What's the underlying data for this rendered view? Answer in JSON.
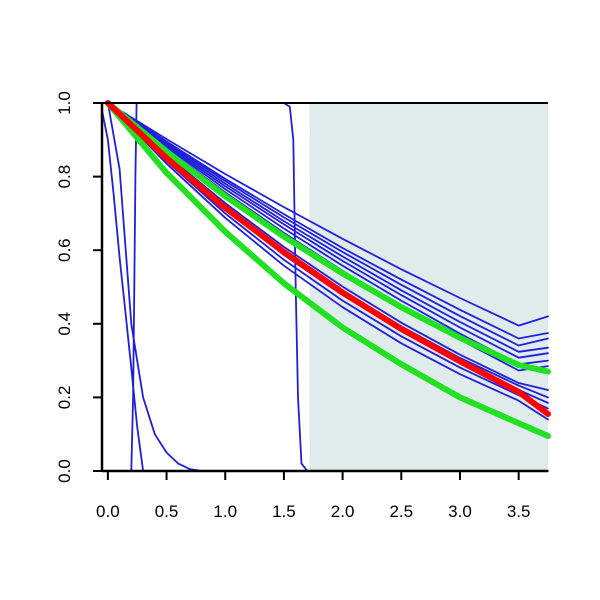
{
  "chart_data": {
    "type": "line",
    "title": "",
    "xlabel": "",
    "ylabel": "",
    "xlim": [
      -0.05,
      3.75
    ],
    "ylim": [
      0.0,
      1.0
    ],
    "grid": false,
    "x_ticks": [
      0.0,
      0.5,
      1.0,
      1.5,
      2.0,
      2.5,
      3.0,
      3.5
    ],
    "x_tick_labels": [
      "0.0",
      "0.5",
      "1.0",
      "1.5",
      "2.0",
      "2.5",
      "3.0",
      "3.5"
    ],
    "y_ticks": [
      0.0,
      0.2,
      0.4,
      0.6,
      0.8,
      1.0
    ],
    "y_tick_labels": [
      "0.0",
      "0.2",
      "0.4",
      "0.6",
      "0.8",
      "1.0"
    ],
    "shaded_region": {
      "x_from": 1.72,
      "x_to": 3.75,
      "color": "#e0ecec"
    },
    "colors": {
      "blue": "#1f1fdc",
      "green": "#22e022",
      "red": "#ff0000"
    },
    "series": [
      {
        "color": "blue",
        "width": "thin",
        "points": [
          [
            0.0,
            1.0
          ],
          [
            0.1,
            0.82
          ],
          [
            0.2,
            0.4
          ],
          [
            0.3,
            0.2
          ],
          [
            0.4,
            0.1
          ],
          [
            0.5,
            0.05
          ],
          [
            0.6,
            0.02
          ],
          [
            0.7,
            0.005
          ],
          [
            0.8,
            0.0
          ],
          [
            3.75,
            0.0
          ]
        ]
      },
      {
        "color": "blue",
        "width": "thin",
        "points": [
          [
            -0.05,
            0.98
          ],
          [
            0.0,
            0.9
          ],
          [
            0.05,
            0.75
          ],
          [
            0.1,
            0.58
          ],
          [
            0.15,
            0.43
          ],
          [
            0.2,
            0.28
          ],
          [
            0.25,
            0.12
          ],
          [
            0.3,
            0.0
          ]
        ]
      },
      {
        "color": "blue",
        "width": "thin",
        "points": [
          [
            0.2,
            0.0
          ],
          [
            0.215,
            0.2
          ],
          [
            0.225,
            0.5
          ],
          [
            0.235,
            0.8
          ],
          [
            0.245,
            1.0
          ],
          [
            1.5,
            1.0
          ],
          [
            1.55,
            0.99
          ],
          [
            1.58,
            0.9
          ],
          [
            1.6,
            0.5
          ],
          [
            1.62,
            0.2
          ],
          [
            1.65,
            0.02
          ],
          [
            1.7,
            0.0
          ]
        ]
      },
      {
        "color": "blue",
        "width": "thin",
        "points": [
          [
            0.0,
            1.0
          ],
          [
            0.5,
            0.902
          ],
          [
            1.0,
            0.807
          ],
          [
            1.5,
            0.717
          ],
          [
            2.0,
            0.631
          ],
          [
            2.5,
            0.548
          ],
          [
            3.0,
            0.47
          ],
          [
            3.5,
            0.395
          ],
          [
            3.75,
            0.42
          ]
        ]
      },
      {
        "color": "blue",
        "width": "thin",
        "points": [
          [
            0.0,
            1.0
          ],
          [
            0.5,
            0.895
          ],
          [
            1.0,
            0.794
          ],
          [
            1.5,
            0.698
          ],
          [
            2.0,
            0.606
          ],
          [
            2.5,
            0.52
          ],
          [
            3.0,
            0.438
          ],
          [
            3.5,
            0.36
          ],
          [
            3.75,
            0.375
          ]
        ]
      },
      {
        "color": "blue",
        "width": "thin",
        "points": [
          [
            0.0,
            1.0
          ],
          [
            0.5,
            0.892
          ],
          [
            1.0,
            0.788
          ],
          [
            1.5,
            0.689
          ],
          [
            2.0,
            0.595
          ],
          [
            2.5,
            0.506
          ],
          [
            3.0,
            0.421
          ],
          [
            3.5,
            0.341
          ],
          [
            3.75,
            0.36
          ]
        ]
      },
      {
        "color": "blue",
        "width": "thin",
        "points": [
          [
            0.0,
            1.0
          ],
          [
            0.5,
            0.888
          ],
          [
            1.0,
            0.781
          ],
          [
            1.5,
            0.679
          ],
          [
            2.0,
            0.583
          ],
          [
            2.5,
            0.491
          ],
          [
            3.0,
            0.405
          ],
          [
            3.5,
            0.324
          ],
          [
            3.75,
            0.335
          ]
        ]
      },
      {
        "color": "blue",
        "width": "thin",
        "points": [
          [
            0.0,
            1.0
          ],
          [
            0.5,
            0.884
          ],
          [
            1.0,
            0.774
          ],
          [
            1.5,
            0.67
          ],
          [
            2.0,
            0.571
          ],
          [
            2.5,
            0.478
          ],
          [
            3.0,
            0.39
          ],
          [
            3.5,
            0.308
          ],
          [
            3.75,
            0.32
          ]
        ]
      },
      {
        "color": "blue",
        "width": "thin",
        "points": [
          [
            0.0,
            1.0
          ],
          [
            0.5,
            0.88
          ],
          [
            1.0,
            0.766
          ],
          [
            1.5,
            0.659
          ],
          [
            2.0,
            0.558
          ],
          [
            2.5,
            0.463
          ],
          [
            3.0,
            0.373
          ],
          [
            3.5,
            0.29
          ],
          [
            3.75,
            0.3
          ]
        ]
      },
      {
        "color": "blue",
        "width": "thin",
        "points": [
          [
            0.0,
            1.0
          ],
          [
            0.5,
            0.875
          ],
          [
            1.0,
            0.757
          ],
          [
            1.5,
            0.647
          ],
          [
            2.0,
            0.544
          ],
          [
            2.5,
            0.447
          ],
          [
            3.0,
            0.357
          ],
          [
            3.5,
            0.273
          ],
          [
            3.75,
            0.285
          ]
        ]
      },
      {
        "color": "blue",
        "width": "thin",
        "points": [
          [
            0.0,
            1.0
          ],
          [
            0.5,
            0.858
          ],
          [
            1.0,
            0.728
          ],
          [
            1.5,
            0.609
          ],
          [
            2.0,
            0.501
          ],
          [
            2.5,
            0.403
          ],
          [
            3.0,
            0.316
          ],
          [
            3.5,
            0.239
          ],
          [
            3.75,
            0.22
          ]
        ]
      },
      {
        "color": "blue",
        "width": "thin",
        "points": [
          [
            0.0,
            1.0
          ],
          [
            0.5,
            0.853
          ],
          [
            1.0,
            0.72
          ],
          [
            1.5,
            0.599
          ],
          [
            2.0,
            0.49
          ],
          [
            2.5,
            0.393
          ],
          [
            3.0,
            0.307
          ],
          [
            3.5,
            0.232
          ],
          [
            3.75,
            0.2
          ]
        ]
      },
      {
        "color": "blue",
        "width": "thin",
        "points": [
          [
            0.0,
            1.0
          ],
          [
            0.5,
            0.848
          ],
          [
            1.0,
            0.71
          ],
          [
            1.5,
            0.587
          ],
          [
            2.0,
            0.478
          ],
          [
            2.5,
            0.381
          ],
          [
            3.0,
            0.295
          ],
          [
            3.5,
            0.22
          ],
          [
            3.75,
            0.185
          ]
        ]
      },
      {
        "color": "blue",
        "width": "thin",
        "points": [
          [
            0.0,
            1.0
          ],
          [
            0.5,
            0.842
          ],
          [
            1.0,
            0.7
          ],
          [
            1.5,
            0.574
          ],
          [
            2.0,
            0.463
          ],
          [
            2.5,
            0.366
          ],
          [
            3.0,
            0.281
          ],
          [
            3.5,
            0.206
          ],
          [
            3.75,
            0.17
          ]
        ]
      },
      {
        "color": "blue",
        "width": "thin",
        "points": [
          [
            0.0,
            1.0
          ],
          [
            0.5,
            0.835
          ],
          [
            1.0,
            0.688
          ],
          [
            1.5,
            0.558
          ],
          [
            2.0,
            0.445
          ],
          [
            2.5,
            0.347
          ],
          [
            3.0,
            0.263
          ],
          [
            3.5,
            0.191
          ],
          [
            3.75,
            0.14
          ]
        ]
      },
      {
        "color": "green",
        "width": "thick",
        "points": [
          [
            0.0,
            1.0
          ],
          [
            0.5,
            0.868
          ],
          [
            1.0,
            0.747
          ],
          [
            1.5,
            0.637
          ],
          [
            2.0,
            0.537
          ],
          [
            2.5,
            0.445
          ],
          [
            3.0,
            0.362
          ],
          [
            3.5,
            0.288
          ],
          [
            3.75,
            0.27
          ]
        ]
      },
      {
        "color": "green",
        "width": "thick",
        "points": [
          [
            0.0,
            1.0
          ],
          [
            0.5,
            0.81
          ],
          [
            1.0,
            0.65
          ],
          [
            1.5,
            0.51
          ],
          [
            2.0,
            0.39
          ],
          [
            2.5,
            0.29
          ],
          [
            3.0,
            0.2
          ],
          [
            3.5,
            0.13
          ],
          [
            3.75,
            0.095
          ]
        ]
      },
      {
        "color": "red",
        "width": "thick",
        "points": [
          [
            0.0,
            1.0
          ],
          [
            0.5,
            0.85
          ],
          [
            1.0,
            0.715
          ],
          [
            1.5,
            0.595
          ],
          [
            2.0,
            0.485
          ],
          [
            2.5,
            0.386
          ],
          [
            3.0,
            0.298
          ],
          [
            3.5,
            0.215
          ],
          [
            3.75,
            0.155
          ]
        ]
      }
    ]
  }
}
